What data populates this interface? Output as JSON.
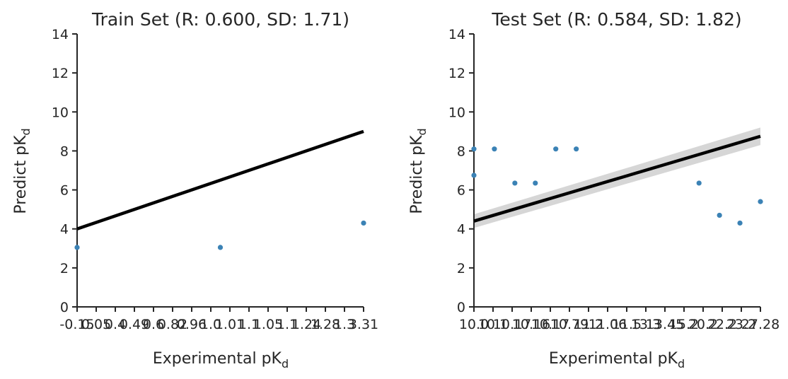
{
  "chart_data": [
    {
      "type": "scatter",
      "title": "Train Set (R: 0.600, SD: 1.71)",
      "xlabel": "Experimental pK",
      "xlabel_sub": "d",
      "ylabel": "Predict pK",
      "ylabel_sub": "d",
      "xlim": [
        0,
        14
      ],
      "ylim": [
        0,
        14
      ],
      "x_tick_labels": [
        "-0.15",
        "0.05",
        "0.4",
        "0.49",
        "0.6",
        "0.82",
        "0.96",
        "1.0",
        "1.01",
        "1.1",
        "1.05",
        "1.1",
        "1.24",
        "1.28",
        "1.3",
        "3.31"
      ],
      "y_ticks": [
        0,
        2,
        4,
        6,
        8,
        10,
        12,
        14
      ],
      "points": [
        {
          "x": 0,
          "y": 3.05
        },
        {
          "x": 7.0,
          "y": 3.05
        },
        {
          "x": 14,
          "y": 4.3
        }
      ],
      "regression": {
        "x": [
          0,
          14
        ],
        "y": [
          4.0,
          9.0
        ]
      },
      "confidence_band": false,
      "point_color": "#3b82b5",
      "line_color": "#000000",
      "grid": false
    },
    {
      "type": "scatter",
      "title": "Test Set (R: 0.584, SD: 1.82)",
      "xlabel": "Experimental pK",
      "xlabel_sub": "d",
      "ylabel": "Predict pK",
      "ylabel_sub": "d",
      "xlim": [
        0,
        14
      ],
      "ylim": [
        0,
        14
      ],
      "x_tick_labels": [
        "10.0",
        "10.1",
        "10.17",
        "10.16",
        "10.17",
        "10.79",
        "11.2",
        "11.06",
        "11.5",
        "13.3",
        "13.45",
        "15.2",
        "20.2",
        "22.2",
        "23.2",
        "27.28"
      ],
      "y_ticks": [
        0,
        2,
        4,
        6,
        8,
        10,
        12,
        14
      ],
      "points": [
        {
          "x": 0,
          "y": 8.1
        },
        {
          "x": 0,
          "y": 6.75
        },
        {
          "x": 1.0,
          "y": 8.1
        },
        {
          "x": 2.0,
          "y": 6.35
        },
        {
          "x": 3.0,
          "y": 6.35
        },
        {
          "x": 4.0,
          "y": 8.1
        },
        {
          "x": 5.0,
          "y": 8.1
        },
        {
          "x": 11.0,
          "y": 6.35
        },
        {
          "x": 12.0,
          "y": 4.7
        },
        {
          "x": 13.0,
          "y": 4.3
        },
        {
          "x": 14,
          "y": 5.4
        }
      ],
      "regression": {
        "x": [
          0,
          14
        ],
        "y": [
          4.4,
          8.75
        ]
      },
      "confidence_band": {
        "lower": [
          4.05,
          8.3
        ],
        "upper": [
          4.75,
          9.2
        ]
      },
      "point_color": "#3b82b5",
      "line_color": "#000000",
      "grid": false
    }
  ]
}
